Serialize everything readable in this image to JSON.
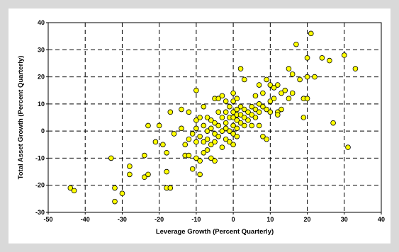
{
  "chart_data": {
    "type": "scatter",
    "xlabel": "Leverage Growth (Percent Quarterly)",
    "ylabel": "Total Asset Growth (Percent Quarterly)",
    "xlim": [
      -50,
      40
    ],
    "ylim": [
      -30,
      40
    ],
    "xticks": [
      "-50",
      "-40",
      "-30",
      "-20",
      "-10",
      "0",
      "10",
      "20",
      "30",
      "40"
    ],
    "yticks": [
      "40",
      "30",
      "20",
      "10",
      "0",
      "-10",
      "-20",
      "-30"
    ],
    "grid": true,
    "grid_style": "dashed",
    "marker_color": "#ffff00",
    "marker_edge": "#000000",
    "points": [
      [
        -44,
        -21
      ],
      [
        -43,
        -22
      ],
      [
        -33,
        -10
      ],
      [
        -32,
        -21
      ],
      [
        -32,
        -26
      ],
      [
        -30,
        -23
      ],
      [
        -28,
        -13
      ],
      [
        -28,
        -16
      ],
      [
        -24,
        -17
      ],
      [
        -24,
        -9
      ],
      [
        -23,
        -16
      ],
      [
        -23,
        2
      ],
      [
        -21,
        -4
      ],
      [
        -20,
        2
      ],
      [
        -19,
        -5
      ],
      [
        -18,
        -8
      ],
      [
        -18,
        -15
      ],
      [
        -18,
        -21
      ],
      [
        -17,
        7
      ],
      [
        -17,
        -21
      ],
      [
        -16,
        -1
      ],
      [
        -14,
        8
      ],
      [
        -14,
        1
      ],
      [
        -13,
        -5
      ],
      [
        -13,
        -9
      ],
      [
        -12,
        7
      ],
      [
        -12,
        -3
      ],
      [
        -12,
        -9
      ],
      [
        -11,
        -1
      ],
      [
        -11,
        -14
      ],
      [
        -10,
        15
      ],
      [
        -10,
        4
      ],
      [
        -10,
        1
      ],
      [
        -10,
        -4
      ],
      [
        -10,
        -10
      ],
      [
        -9,
        5
      ],
      [
        -9,
        -2
      ],
      [
        -9,
        -11
      ],
      [
        -9,
        -16
      ],
      [
        -8,
        9
      ],
      [
        -8,
        2
      ],
      [
        -8,
        -4
      ],
      [
        -8,
        -8
      ],
      [
        -7,
        5
      ],
      [
        -7,
        0
      ],
      [
        -7,
        -3
      ],
      [
        -7,
        -7
      ],
      [
        -6,
        4
      ],
      [
        -6,
        1
      ],
      [
        -6,
        -5
      ],
      [
        -6,
        -10
      ],
      [
        -5,
        12
      ],
      [
        -5,
        3
      ],
      [
        -5,
        -1
      ],
      [
        -5,
        -4
      ],
      [
        -5,
        -11
      ],
      [
        -4,
        12
      ],
      [
        -4,
        7
      ],
      [
        -4,
        2
      ],
      [
        -4,
        -2
      ],
      [
        -3,
        13
      ],
      [
        -3,
        5
      ],
      [
        -3,
        0
      ],
      [
        -3,
        -6
      ],
      [
        -2,
        11
      ],
      [
        -2,
        7
      ],
      [
        -2,
        3
      ],
      [
        -2,
        1
      ],
      [
        -2,
        -3
      ],
      [
        -1,
        9
      ],
      [
        -1,
        5
      ],
      [
        -1,
        0
      ],
      [
        -1,
        -4
      ],
      [
        0,
        14
      ],
      [
        0,
        11
      ],
      [
        0,
        7
      ],
      [
        0,
        5
      ],
      [
        0,
        2
      ],
      [
        0,
        -1
      ],
      [
        0,
        -5
      ],
      [
        1,
        12
      ],
      [
        1,
        8
      ],
      [
        1,
        6
      ],
      [
        1,
        4
      ],
      [
        1,
        1
      ],
      [
        1,
        -2
      ],
      [
        2,
        23
      ],
      [
        2,
        9
      ],
      [
        2,
        6
      ],
      [
        2,
        3
      ],
      [
        3,
        19
      ],
      [
        3,
        8
      ],
      [
        3,
        5
      ],
      [
        3,
        2
      ],
      [
        4,
        7
      ],
      [
        4,
        4
      ],
      [
        5,
        9
      ],
      [
        5,
        6
      ],
      [
        5,
        2
      ],
      [
        6,
        13
      ],
      [
        6,
        8
      ],
      [
        6,
        5
      ],
      [
        7,
        17
      ],
      [
        7,
        10
      ],
      [
        7,
        7
      ],
      [
        7,
        2
      ],
      [
        8,
        14
      ],
      [
        8,
        9
      ],
      [
        8,
        -2
      ],
      [
        9,
        19
      ],
      [
        9,
        8
      ],
      [
        9,
        -3
      ],
      [
        10,
        17
      ],
      [
        10,
        11
      ],
      [
        10,
        7
      ],
      [
        11,
        16
      ],
      [
        11,
        12
      ],
      [
        12,
        17
      ],
      [
        12,
        7
      ],
      [
        12,
        6
      ],
      [
        13,
        14
      ],
      [
        13,
        8
      ],
      [
        14,
        15
      ],
      [
        15,
        23
      ],
      [
        15,
        12
      ],
      [
        16,
        21
      ],
      [
        16,
        14
      ],
      [
        17,
        32
      ],
      [
        18,
        19
      ],
      [
        19,
        12
      ],
      [
        19,
        5
      ],
      [
        20,
        20
      ],
      [
        20,
        12
      ],
      [
        20,
        27
      ],
      [
        21,
        36
      ],
      [
        22,
        20
      ],
      [
        24,
        27
      ],
      [
        26,
        26
      ],
      [
        27,
        3
      ],
      [
        30,
        28
      ],
      [
        31,
        -6
      ],
      [
        33,
        23
      ]
    ]
  }
}
